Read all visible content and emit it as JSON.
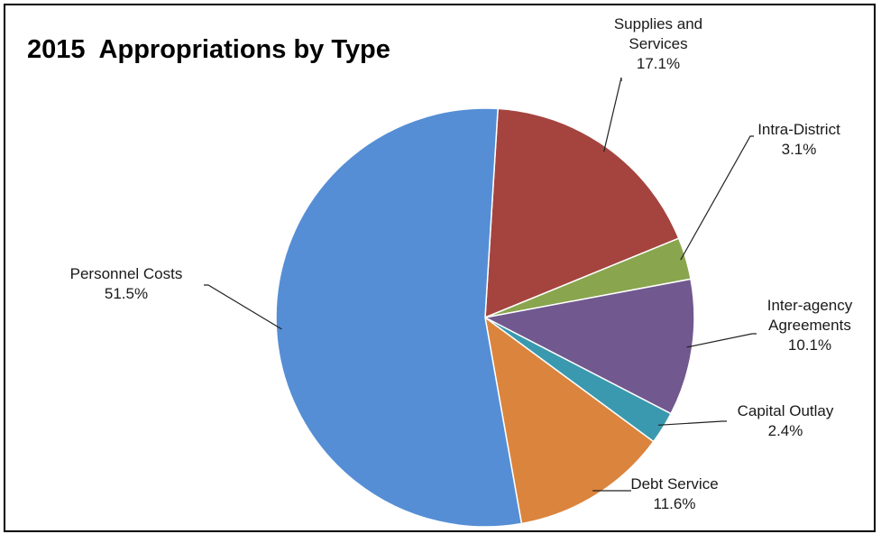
{
  "chart_data": {
    "type": "pie",
    "title": "2015  Appropriations by Type",
    "start_angle_deg": 3.5,
    "direction": "clockwise",
    "slices": [
      {
        "name_lines": [
          "Supplies and",
          "Services"
        ],
        "percent_label": "17.1%",
        "value": 17.1,
        "color": "#A5443F"
      },
      {
        "name_lines": [
          "Intra-District"
        ],
        "percent_label": "3.1%",
        "value": 3.1,
        "color": "#89A54E"
      },
      {
        "name_lines": [
          "Inter-agency",
          "Agreements"
        ],
        "percent_label": "10.1%",
        "value": 10.1,
        "color": "#71588F"
      },
      {
        "name_lines": [
          "Capital  Outlay"
        ],
        "percent_label": "2.4%",
        "value": 2.4,
        "color": "#3A99AE"
      },
      {
        "name_lines": [
          "Debt Service"
        ],
        "percent_label": "11.6%",
        "value": 11.6,
        "color": "#DB843D"
      },
      {
        "name_lines": [
          "Personnel Costs"
        ],
        "percent_label": "51.5%",
        "value": 51.5,
        "color": "#558ED5"
      }
    ]
  }
}
